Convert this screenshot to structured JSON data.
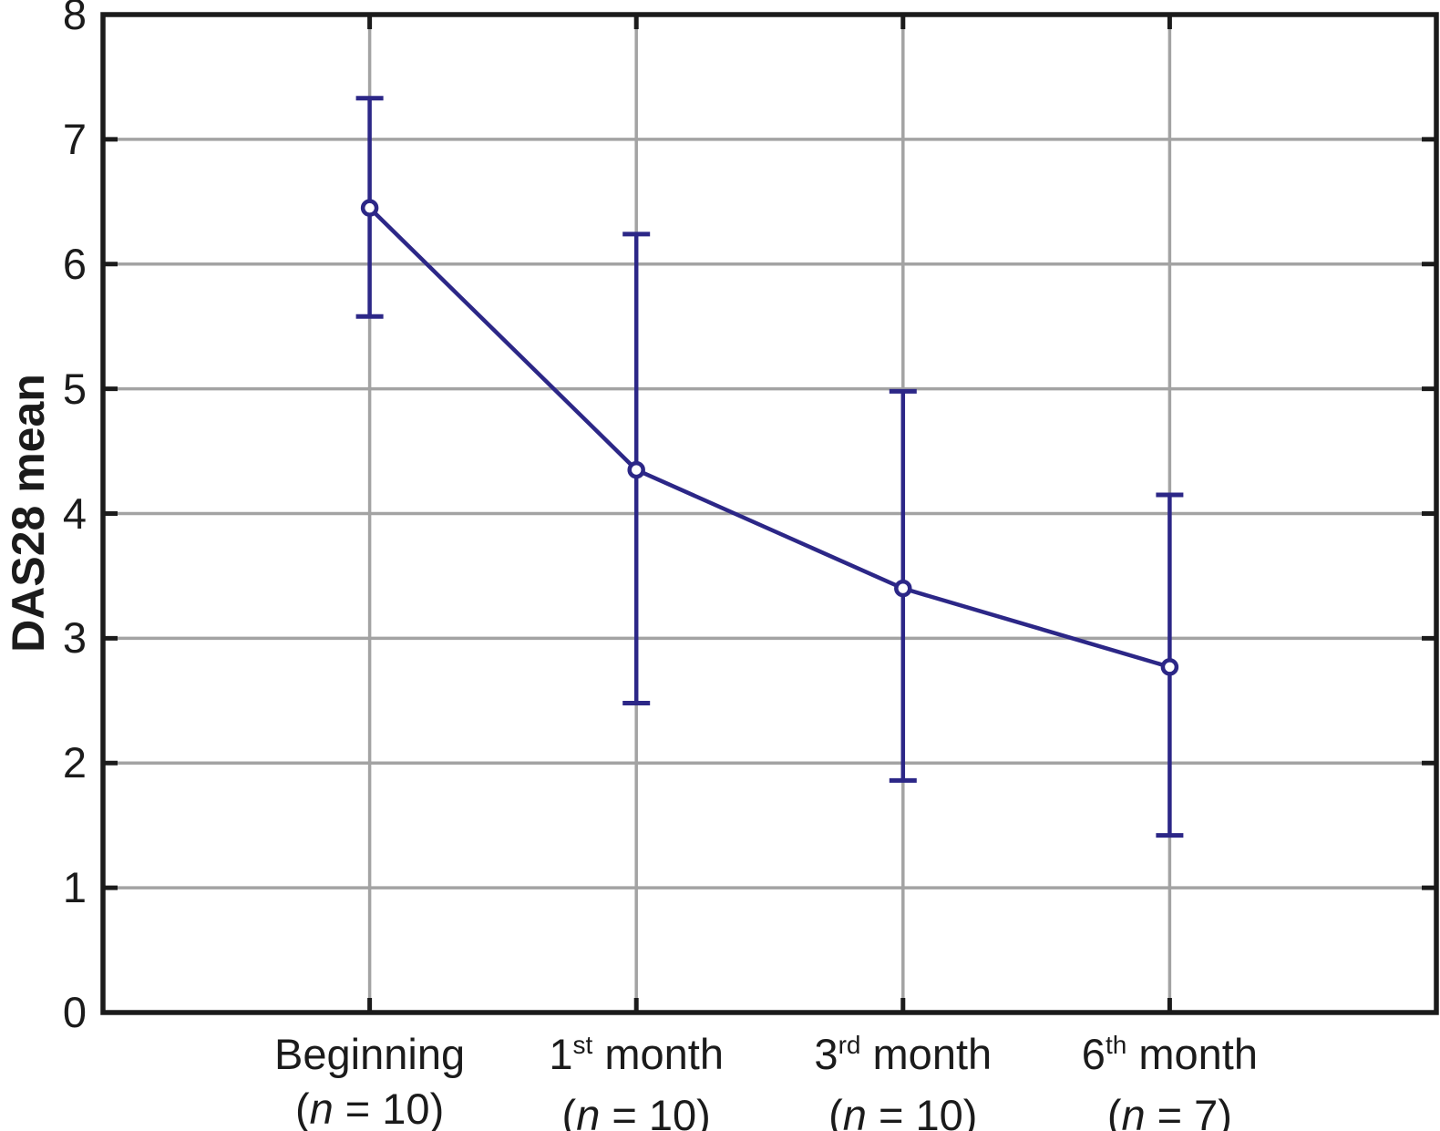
{
  "chart_data": {
    "type": "line",
    "title": "",
    "ylabel": "DAS28 mean",
    "xlabel": "",
    "ylim": [
      0,
      8
    ],
    "yticks": [
      0,
      1,
      2,
      3,
      4,
      5,
      6,
      7,
      8
    ],
    "grid": true,
    "legend_position": "none",
    "categories": [
      {
        "base": "Beginning",
        "sup": "",
        "tail": "",
        "n": "10"
      },
      {
        "base": "1",
        "sup": "st",
        "tail": "month",
        "n": "10"
      },
      {
        "base": "3",
        "sup": "rd",
        "tail": "month",
        "n": "10"
      },
      {
        "base": "6",
        "sup": "th",
        "tail": "month",
        "n": "7"
      }
    ],
    "n_format": {
      "open": "(",
      "var": "n",
      "eq": " = ",
      "close": ")"
    },
    "series": [
      {
        "name": "DAS28 mean",
        "means": [
          6.45,
          4.35,
          3.4,
          2.77
        ],
        "upper": [
          7.33,
          6.24,
          4.98,
          4.15
        ],
        "lower": [
          5.58,
          2.48,
          1.86,
          1.42
        ],
        "marker": "open-circle",
        "line_style": "solid"
      }
    ]
  },
  "colors": {
    "series": "#2c2787",
    "grid": "#a3a3a3",
    "axis": "#1b1b1b",
    "text": "#1b1b1b",
    "background": "#ffffff"
  }
}
